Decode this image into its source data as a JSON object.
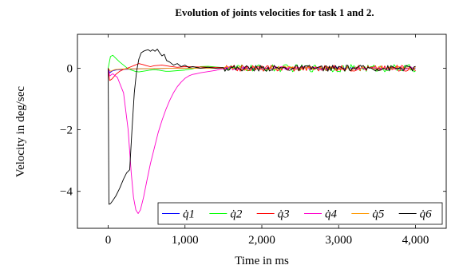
{
  "chart_data": {
    "type": "line",
    "title": "Evolution of joints velocities for task 1 and 2.",
    "xlabel": "Time in ms",
    "ylabel": "Velocity in deg/sec",
    "xlim": [
      -400,
      4400
    ],
    "ylim": [
      -5.2,
      1.1
    ],
    "xticks": [
      0,
      1000,
      2000,
      3000,
      4000
    ],
    "xtick_labels": [
      "0",
      "1,000",
      "2,000",
      "3,000",
      "4,000"
    ],
    "yticks": [
      -4,
      -2,
      0
    ],
    "ytick_labels": [
      "−4",
      "−2",
      "0"
    ],
    "grid": false,
    "legend": {
      "placement": "bottom-right",
      "columns": 6
    },
    "series": [
      {
        "name": "q̇1",
        "color": "#0000ff",
        "x": [
          0,
          20,
          60,
          120,
          200,
          300,
          400,
          500,
          600,
          700,
          800,
          900,
          1000,
          1200,
          1500
        ],
        "y": [
          0,
          -0.15,
          -0.08,
          -0.05,
          -0.04,
          -0.03,
          -0.02,
          -0.02,
          -0.01,
          -0.01,
          0,
          0,
          0,
          0,
          0
        ]
      },
      {
        "name": "q̇2",
        "color": "#00ff00",
        "x": [
          0,
          30,
          60,
          100,
          150,
          200,
          250,
          300,
          350,
          400,
          450,
          500,
          550,
          600,
          650,
          700,
          750,
          800,
          900,
          1000,
          1100,
          1200,
          1300,
          1400,
          1500
        ],
        "y": [
          0,
          0.38,
          0.42,
          0.32,
          0.2,
          0.1,
          0,
          -0.06,
          -0.1,
          -0.12,
          -0.1,
          -0.08,
          -0.06,
          -0.05,
          -0.06,
          -0.08,
          -0.1,
          -0.1,
          -0.08,
          -0.06,
          -0.02,
          0.05,
          0.06,
          0.04,
          0.02
        ]
      },
      {
        "name": "q̇3",
        "color": "#ff0000",
        "x": [
          0,
          20,
          50,
          100,
          150,
          200,
          250,
          300,
          350,
          400,
          450,
          500,
          550,
          600,
          700,
          800,
          900,
          1000,
          1200,
          1500
        ],
        "y": [
          0,
          -0.4,
          -0.35,
          -0.2,
          -0.1,
          -0.04,
          0,
          0.05,
          0.1,
          0.15,
          0.12,
          0.08,
          0.05,
          0.08,
          0.1,
          0.06,
          0.03,
          0.05,
          0.04,
          0.02
        ]
      },
      {
        "name": "q̇4",
        "color": "#ff00cc",
        "x": [
          0,
          20,
          60,
          120,
          200,
          260,
          300,
          330,
          360,
          390,
          420,
          460,
          500,
          550,
          600,
          650,
          700,
          750,
          800,
          850,
          900,
          950,
          1000,
          1050,
          1100,
          1150,
          1200,
          1250,
          1300,
          1350,
          1400,
          1450,
          1500
        ],
        "y": [
          0,
          -0.25,
          -0.18,
          -0.3,
          -0.8,
          -2.0,
          -3.4,
          -4.2,
          -4.6,
          -4.72,
          -4.6,
          -4.2,
          -3.7,
          -3.1,
          -2.6,
          -2.1,
          -1.7,
          -1.35,
          -1.05,
          -0.8,
          -0.6,
          -0.45,
          -0.33,
          -0.25,
          -0.2,
          -0.18,
          -0.15,
          -0.13,
          -0.11,
          -0.09,
          -0.07,
          -0.04,
          -0.02
        ]
      },
      {
        "name": "q̇5",
        "color": "#ff9900",
        "x": [
          0,
          30,
          80,
          150,
          250,
          400,
          600,
          800,
          1000,
          1200,
          1500
        ],
        "y": [
          0,
          -0.1,
          -0.05,
          -0.03,
          -0.02,
          -0.02,
          -0.01,
          0,
          0,
          0,
          0
        ]
      },
      {
        "name": "q̇6",
        "color": "#000000",
        "x": [
          0,
          10,
          30,
          60,
          100,
          150,
          200,
          240,
          280,
          310,
          340,
          370,
          400,
          430,
          460,
          490,
          520,
          550,
          580,
          610,
          640,
          670,
          700,
          730,
          760,
          800,
          850,
          900,
          950,
          1000,
          1050,
          1100,
          1200,
          1300,
          1400,
          1500
        ],
        "y": [
          0,
          -4.42,
          -4.4,
          -4.3,
          -4.15,
          -3.9,
          -3.6,
          -3.4,
          -3.3,
          -2.0,
          -0.8,
          -0.1,
          0.3,
          0.5,
          0.55,
          0.58,
          0.6,
          0.55,
          0.6,
          0.55,
          0.62,
          0.5,
          0.4,
          0.45,
          0.25,
          0.2,
          0.1,
          0.15,
          0.05,
          0.1,
          0.02,
          0.05,
          0.0,
          0.03,
          0.0,
          0.02
        ]
      }
    ],
    "noise": {
      "start": 1500,
      "end": 4000,
      "step": 20,
      "amplitude": [
        0.02,
        0.12,
        0.1,
        0.06,
        0.06,
        0.1
      ]
    }
  }
}
